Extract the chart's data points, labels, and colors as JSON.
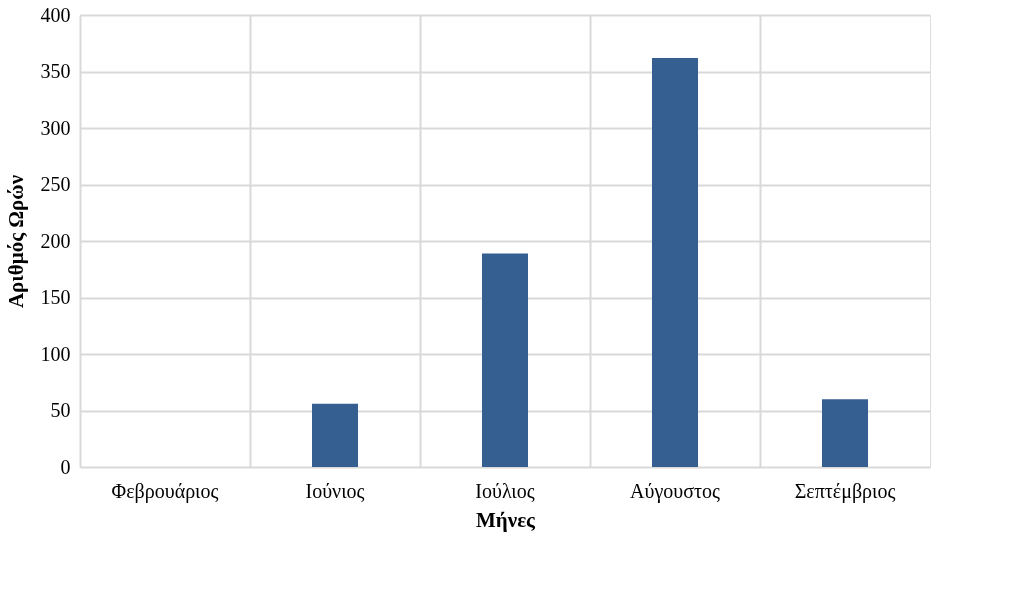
{
  "chart_data": {
    "type": "bar",
    "xlabel": "Μήνες",
    "ylabel": "Αριθμός Ωρών",
    "categories": [
      "Φεβρουάριος",
      "Ιούνιος",
      "Ιούλιος",
      "Αύγουστος",
      "Σεπτέμβριος"
    ],
    "values": [
      0,
      56,
      189,
      362,
      60
    ],
    "color": "#355f91",
    "ylim": [
      0,
      400
    ],
    "yticks": [
      0,
      50,
      100,
      150,
      200,
      250,
      300,
      350,
      400
    ],
    "grid": true
  }
}
